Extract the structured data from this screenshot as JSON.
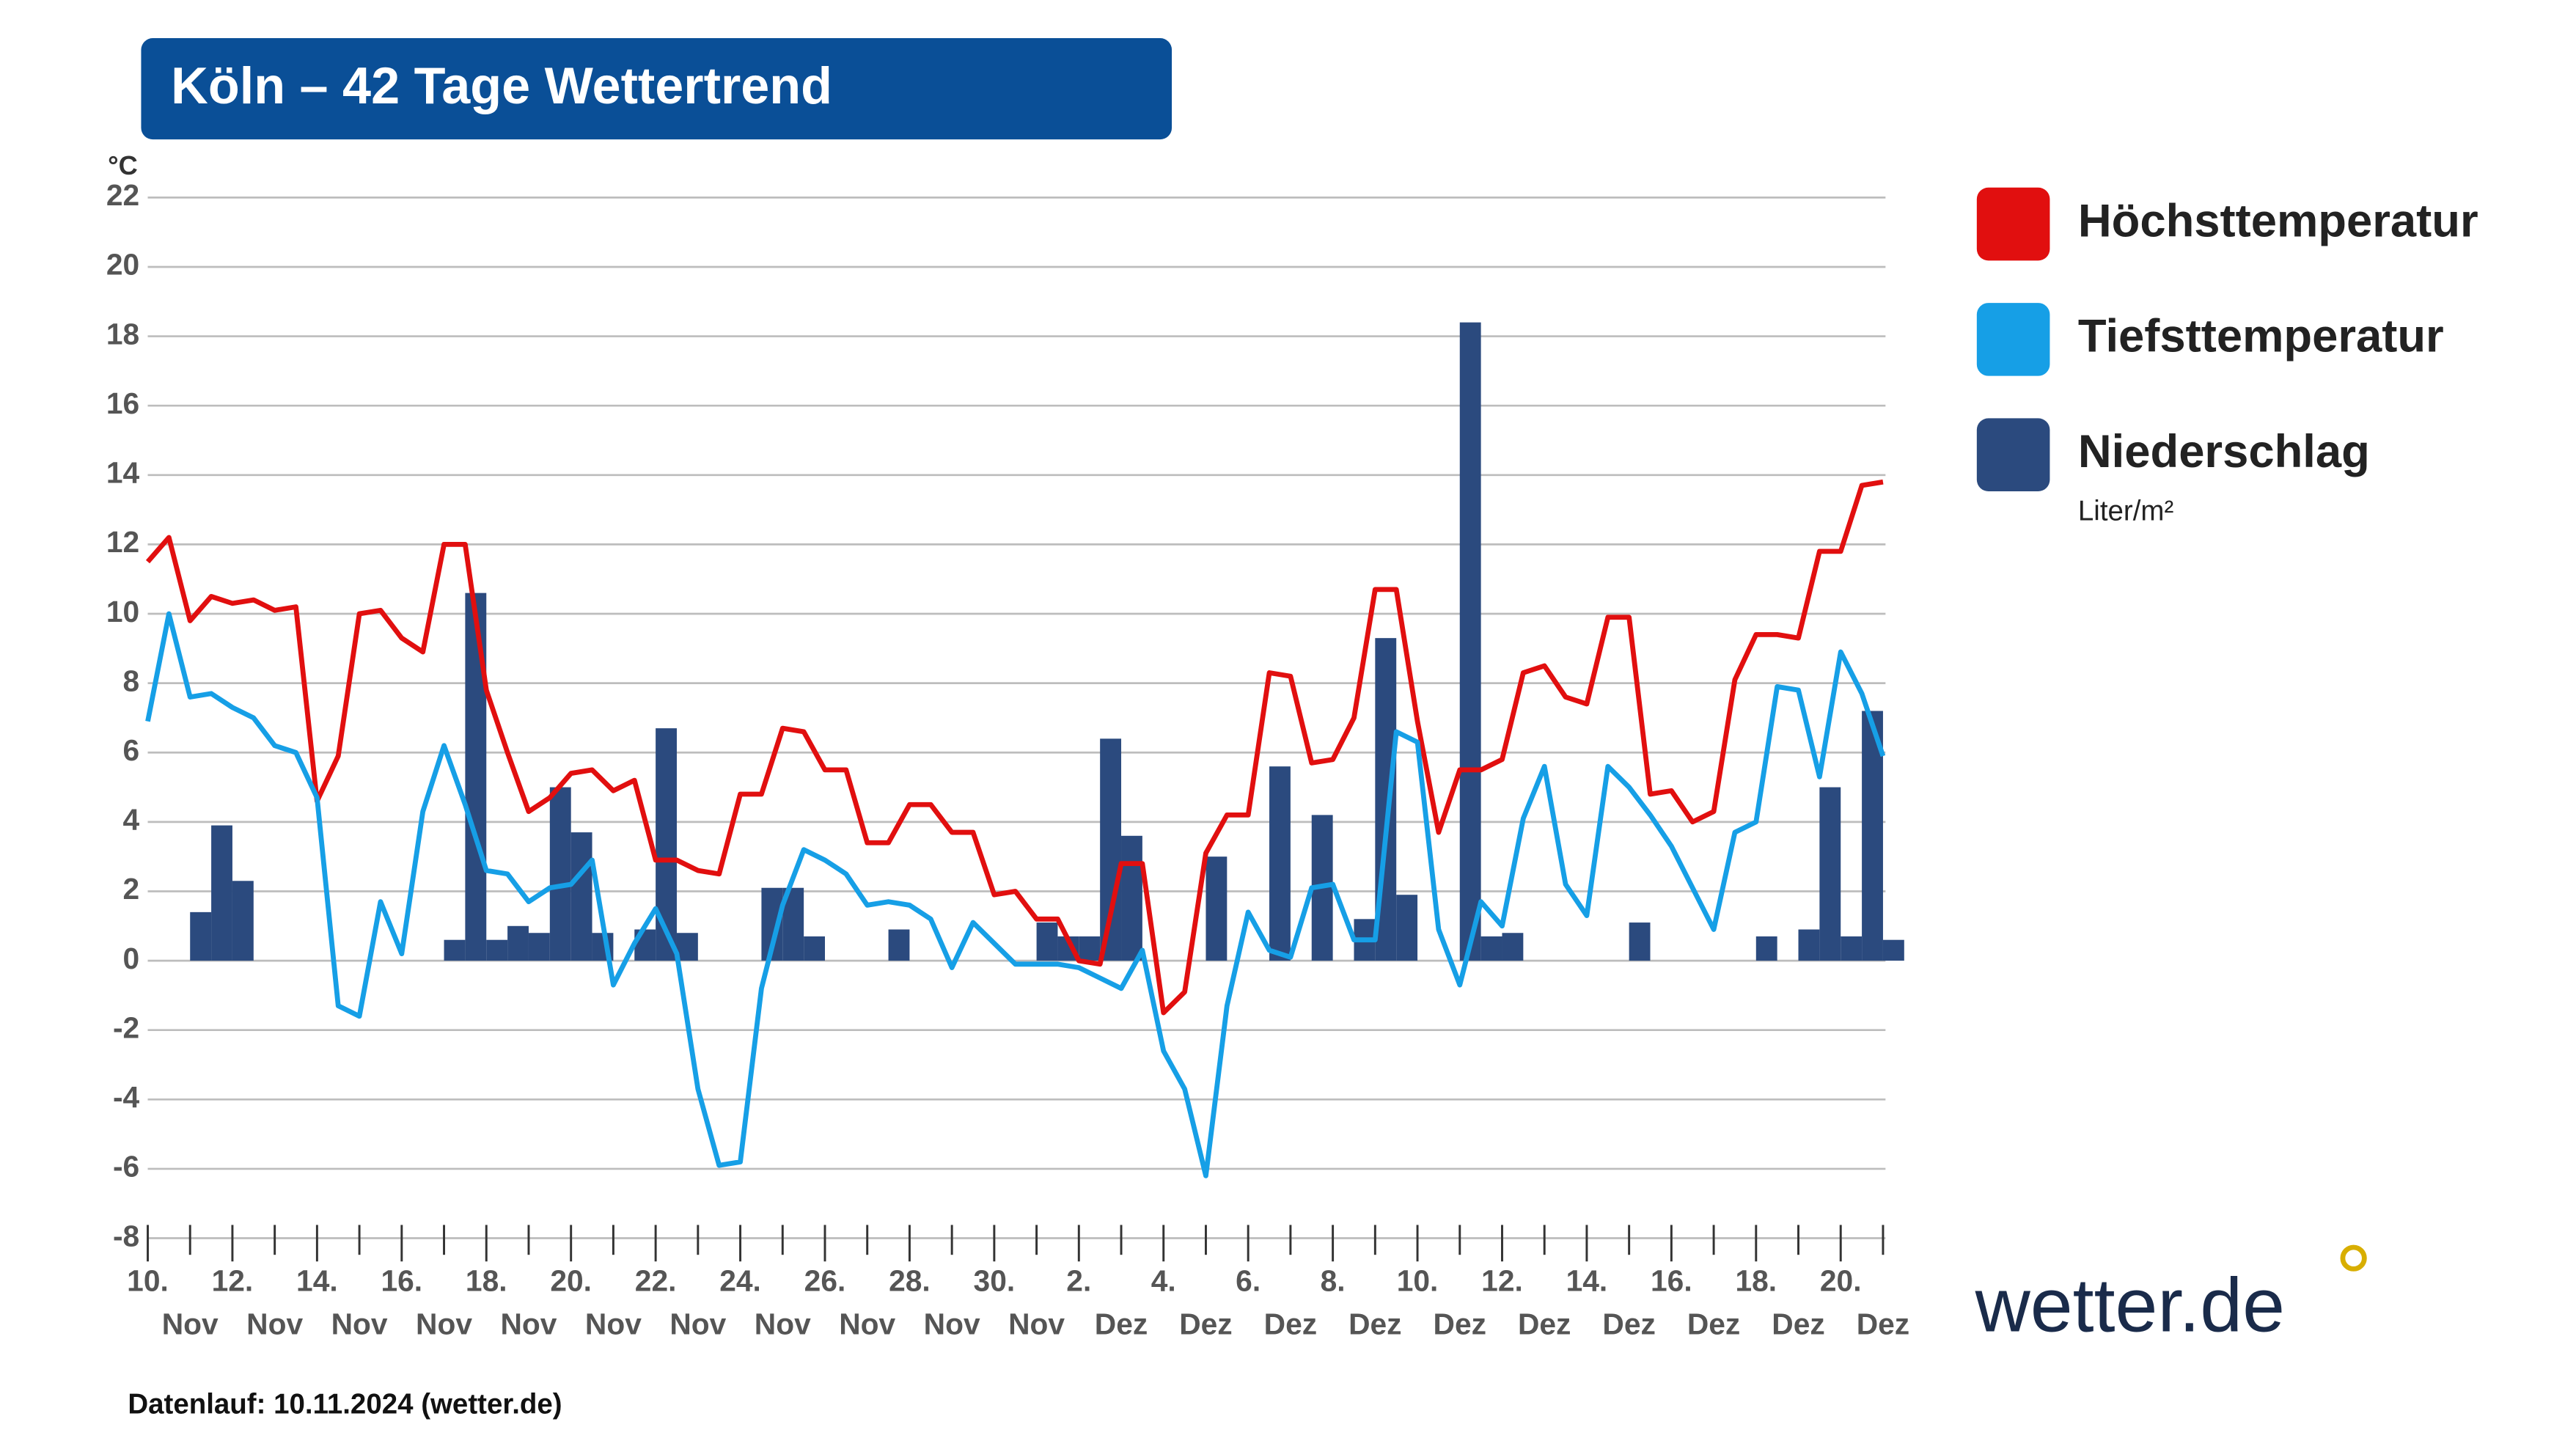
{
  "chart_data": {
    "type": "combo",
    "title": "Köln – 42 Tage Wettertrend",
    "y_unit": "°C",
    "ylim": [
      -8,
      22
    ],
    "yticks": [
      -8,
      -6,
      -4,
      -2,
      0,
      2,
      4,
      6,
      8,
      10,
      12,
      14,
      16,
      18,
      20,
      22
    ],
    "grid": true,
    "x_labels": [
      {
        "day": "10.",
        "month": "Nov"
      },
      {
        "day": "12.",
        "month": "Nov"
      },
      {
        "day": "14.",
        "month": "Nov"
      },
      {
        "day": "16.",
        "month": "Nov"
      },
      {
        "day": "18.",
        "month": "Nov"
      },
      {
        "day": "20.",
        "month": "Nov"
      },
      {
        "day": "22.",
        "month": "Nov"
      },
      {
        "day": "24.",
        "month": "Nov"
      },
      {
        "day": "26.",
        "month": "Nov"
      },
      {
        "day": "28.",
        "month": "Nov"
      },
      {
        "day": "30.",
        "month": "Nov"
      },
      {
        "day": "2.",
        "month": "Dez"
      },
      {
        "day": "4.",
        "month": "Dez"
      },
      {
        "day": "6.",
        "month": "Dez"
      },
      {
        "day": "8.",
        "month": "Dez"
      },
      {
        "day": "10.",
        "month": "Dez"
      },
      {
        "day": "12.",
        "month": "Dez"
      },
      {
        "day": "14.",
        "month": "Dez"
      },
      {
        "day": "16.",
        "month": "Dez"
      },
      {
        "day": "18.",
        "month": "Dez"
      },
      {
        "day": "20.",
        "month": "Dez"
      }
    ],
    "series": [
      {
        "name": "Niederschlag",
        "type": "bar",
        "unit": "Liter/m²",
        "color": "#2b4a7e",
        "values": [
          0,
          0,
          1.4,
          3.9,
          2.3,
          0,
          0,
          0,
          0,
          0,
          0,
          0,
          0,
          0,
          0.6,
          10.6,
          0.6,
          1.0,
          0.8,
          5.0,
          3.7,
          0.8,
          0,
          0.9,
          6.7,
          0.8,
          0,
          0,
          0,
          2.1,
          2.1,
          0.7,
          0,
          0,
          0,
          0.9,
          0,
          0,
          0,
          0,
          0,
          0,
          1.1,
          0.7,
          0.7,
          6.4,
          3.6,
          0,
          0,
          0,
          3.0,
          0,
          0,
          5.6,
          0,
          4.2,
          0,
          1.2,
          9.3,
          1.9,
          0,
          0,
          18.4,
          0.7,
          0.8,
          0,
          0,
          0,
          0,
          0,
          1.1,
          0,
          0,
          0,
          0,
          0,
          0.7,
          0,
          0.9,
          5.0,
          0.7,
          7.2,
          0.6
        ]
      },
      {
        "name": "Höchsttemperatur",
        "type": "line",
        "color": "#e10f0f",
        "values": [
          11.5,
          12.2,
          9.8,
          10.5,
          10.3,
          10.4,
          10.1,
          10.2,
          4.6,
          5.9,
          10.0,
          10.1,
          9.3,
          8.9,
          12.0,
          12.0,
          7.8,
          6.0,
          4.3,
          4.7,
          5.4,
          5.5,
          4.9,
          5.2,
          2.9,
          2.9,
          2.6,
          2.5,
          4.8,
          4.8,
          6.7,
          6.6,
          5.5,
          5.5,
          3.4,
          3.4,
          4.5,
          4.5,
          3.7,
          3.7,
          1.9,
          2.0,
          1.2,
          1.2,
          0.0,
          -0.1,
          2.8,
          2.8,
          -1.5,
          -0.9,
          3.1,
          4.2,
          4.2,
          8.3,
          8.2,
          5.7,
          5.8,
          7.0,
          10.7,
          10.7,
          6.9,
          3.7,
          5.5,
          5.5,
          5.8,
          8.3,
          8.5,
          7.6,
          7.4,
          9.9,
          9.9,
          4.8,
          4.9,
          4.0,
          4.3,
          8.1,
          9.4,
          9.4,
          9.3,
          11.8,
          11.8,
          13.7,
          13.8
        ]
      },
      {
        "name": "Tiefsttemperatur",
        "type": "line",
        "color": "#169fe6",
        "values": [
          6.9,
          10.0,
          7.6,
          7.7,
          7.3,
          7.0,
          6.2,
          6.0,
          4.7,
          -1.3,
          -1.6,
          1.7,
          0.2,
          4.3,
          6.2,
          4.5,
          2.6,
          2.5,
          1.7,
          2.1,
          2.2,
          2.9,
          -0.7,
          0.5,
          1.5,
          0.2,
          -3.7,
          -5.9,
          -5.8,
          -0.8,
          1.6,
          3.2,
          2.9,
          2.5,
          1.6,
          1.7,
          1.6,
          1.2,
          -0.2,
          1.1,
          0.5,
          -0.1,
          -0.1,
          -0.1,
          -0.2,
          -0.5,
          -0.8,
          0.3,
          -2.6,
          -3.7,
          -6.2,
          -1.3,
          1.4,
          0.3,
          0.1,
          2.1,
          2.2,
          0.6,
          0.6,
          6.6,
          6.3,
          0.9,
          -0.7,
          1.7,
          1.0,
          4.1,
          5.6,
          2.2,
          1.3,
          5.6,
          5.0,
          4.2,
          3.3,
          2.1,
          0.9,
          3.7,
          4.0,
          7.9,
          7.8,
          5.3,
          8.9,
          7.7,
          5.9
        ]
      }
    ],
    "legend_order": [
      1,
      2,
      0
    ],
    "footer": "Datenlauf: 10.11.2024 (wetter.de)",
    "brand": "wetter.de"
  }
}
